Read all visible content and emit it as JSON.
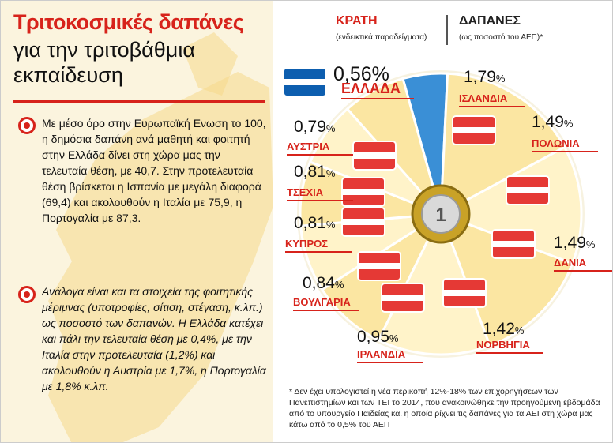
{
  "title": {
    "line1": "Τριτοκοσμικές δαπάνες",
    "line2": "για την τριτοβάθμια εκπαίδευση"
  },
  "paragraphs": [
    "Με μέσο όρο στην Ευρωπαϊκή Ενωση το 100, η δημόσια δαπάνη ανά μαθητή και φοιτητή στην Ελλάδα δίνει στη χώρα μας την τελευταία θέση, με 40,7. Στην προτελευταία θέση βρίσκεται η Ισπανία με μεγάλη διαφορά (69,4) και ακολουθούν η Ιταλία με 75,9, η Πορτογαλία με 87,3.",
    "Ανάλογα είναι και τα στοιχεία της φοιτητικής μέριμνας (υποτροφίες, σίτιση, στέγαση, κ.λπ.) ως ποσοστό των δαπανών. Η Ελλάδα κατέχει και πάλι την τελευταία θέση με 0,4%, με την Ιταλία στην προτελευταία (1,2%) και ακολουθούν η Αυστρία με 1,7%, η Πορτογαλία με 1,8% κ.λπ."
  ],
  "header": {
    "states": "ΚΡΑΤΗ",
    "states_sub": "(ενδεικτικά παραδείγματα)",
    "spending": "ΔΑΠΑΝΕΣ",
    "spending_sub": "(ως ποσοστό του ΑΕΠ)*"
  },
  "coin_label": "1",
  "footnote": "* Δεν έχει υπολογιστεί η νέα περικοπή 12%-18% των επιχορηγήσεων των Πανεπιστημίων και των ΤΕΙ το 2014, που ανακοινώθηκε την προηγούμενη εβδομάδα από το υπουργείο Παιδείας και η οποία ρίχνει τις δαπάνες για τα ΑΕΙ στη χώρα μας κάτω από το 0,5% του ΑΕΠ",
  "chart_data": {
    "type": "pie",
    "unit": "%",
    "categories": [
      "ΕΛΛΑΔΑ",
      "ΙΣΛΑΝΔΙΑ",
      "ΠΟΛΩΝΙΑ",
      "ΔΑΝΙΑ",
      "ΝΟΡΒΗΓΙΑ",
      "ΙΡΛΑΝΔΙΑ",
      "ΒΟΥΛΓΑΡΙΑ",
      "ΚΥΠΡΟΣ",
      "ΤΣΕΧΙΑ",
      "ΑΥΣΤΡΙΑ"
    ],
    "values": [
      0.56,
      1.79,
      1.49,
      1.49,
      1.42,
      0.95,
      0.84,
      0.81,
      0.81,
      0.79
    ],
    "value_labels": [
      "0,56",
      "1,79",
      "1,49",
      "1,49",
      "1,42",
      "0,95",
      "0,84",
      "0,81",
      "0,81",
      "0,79"
    ],
    "highlight": "ΕΛΛΑΔΑ",
    "colors": {
      "highlight": "#3a8fd6",
      "slice": "#fbe6a2",
      "alt": "#fff3c9",
      "accent": "#d7231b"
    }
  }
}
